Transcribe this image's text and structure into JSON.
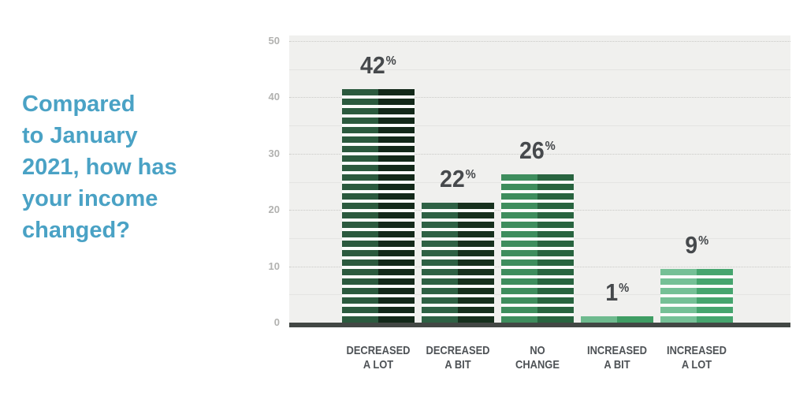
{
  "title": {
    "text": "Compared to January 2021, how has your income changed?",
    "lines": [
      "Compared",
      "to January",
      "2021, how has",
      "your income",
      "changed?"
    ],
    "color": "#4aa2c5"
  },
  "chart_data": {
    "type": "bar",
    "title": "Compared to January 2021, how has your income changed?",
    "categories": [
      "DECREASED A LOT",
      "DECREASED A BIT",
      "NO CHANGE",
      "INCREASED A BIT",
      "INCREASED A LOT"
    ],
    "category_lines": [
      [
        "DECREASED",
        "A LOT"
      ],
      [
        "DECREASED",
        "A BIT"
      ],
      [
        "NO",
        "CHANGE"
      ],
      [
        "INCREASED",
        "A BIT"
      ],
      [
        "INCREASED",
        "A LOT"
      ]
    ],
    "values": [
      42,
      22,
      26,
      1,
      9
    ],
    "value_labels": [
      "42",
      "22",
      "26",
      "1",
      "9"
    ],
    "unit": "%",
    "xlabel": "",
    "ylabel": "",
    "ylim": [
      0,
      50
    ],
    "yticks": [
      0,
      10,
      20,
      30,
      40,
      50
    ],
    "minor_ticks": [
      5,
      15,
      25,
      35,
      45
    ],
    "grid": "dotted major horizontal lines, faint solid minor lines",
    "legend": null,
    "bar_style": "horizontal striped blocks, each bar split into lighter left half and darker right half",
    "colors": {
      "plot_bg": "#f0f0ee",
      "major_grid": "#c9c9c6",
      "minor_grid": "#e4e4e2",
      "axis_line": "#424744",
      "tick_label": "#b2b2b0",
      "value_label": "#46494c",
      "category_label": "#4e5256",
      "stripe_gap": "#fbfdfb",
      "bars": [
        {
          "left": "#2b5a3e",
          "right": "#13291a"
        },
        {
          "left": "#2e6144",
          "right": "#16301d"
        },
        {
          "left": "#3e8d5d",
          "right": "#28643f"
        },
        {
          "left": "#6eba8e",
          "right": "#3f9d63"
        },
        {
          "left": "#75c096",
          "right": "#46a56e"
        }
      ]
    }
  }
}
